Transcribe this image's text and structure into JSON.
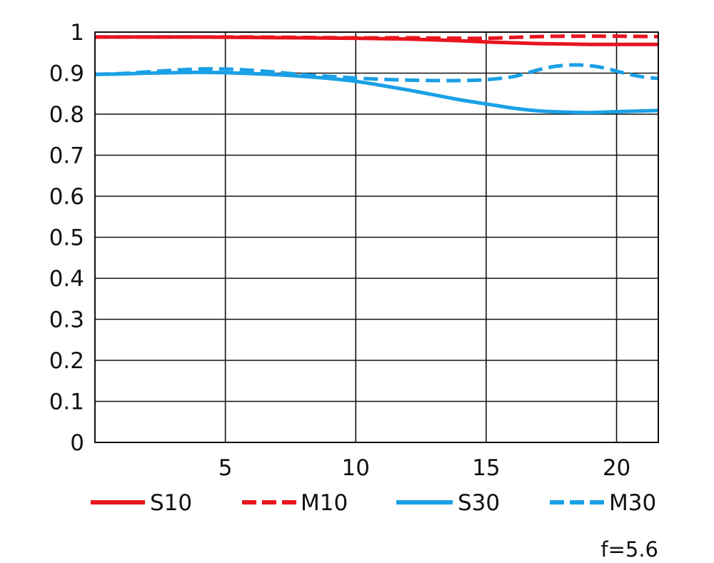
{
  "chart_data": {
    "type": "line",
    "title": "",
    "xlabel": "",
    "ylabel": "",
    "xlim": [
      0,
      21.6
    ],
    "ylim": [
      0,
      1
    ],
    "x_ticks": [
      5,
      10,
      15,
      20
    ],
    "y_ticks": [
      0,
      0.1,
      0.2,
      0.3,
      0.4,
      0.5,
      0.6,
      0.7,
      0.8,
      0.9,
      1
    ],
    "x_tick_labels": [
      "5",
      "10",
      "15",
      "20"
    ],
    "y_tick_labels": [
      "0",
      "0.1",
      "0.2",
      "0.3",
      "0.4",
      "0.5",
      "0.6",
      "0.7",
      "0.8",
      "0.9",
      "1"
    ],
    "grid": true,
    "legend_position": "bottom",
    "annotation": "f=5.6",
    "series": [
      {
        "name": "S10",
        "color": "#e8141e",
        "style": "solid",
        "x": [
          0,
          2,
          4,
          6,
          8,
          10,
          12,
          14,
          15,
          16,
          17,
          18,
          19,
          20,
          21.6
        ],
        "values": [
          0.988,
          0.988,
          0.988,
          0.987,
          0.986,
          0.985,
          0.983,
          0.979,
          0.976,
          0.974,
          0.972,
          0.971,
          0.97,
          0.97,
          0.97
        ]
      },
      {
        "name": "M10",
        "color": "#e8141e",
        "style": "dashed",
        "x": [
          0,
          2,
          4,
          6,
          8,
          10,
          12,
          14,
          15,
          16,
          17,
          18,
          19,
          20,
          21.6
        ],
        "values": [
          0.988,
          0.988,
          0.988,
          0.988,
          0.987,
          0.986,
          0.986,
          0.985,
          0.985,
          0.987,
          0.989,
          0.99,
          0.99,
          0.99,
          0.989
        ]
      },
      {
        "name": "S30",
        "color": "#1aa0e6",
        "style": "solid",
        "x": [
          0,
          1,
          2,
          3,
          4,
          5,
          6,
          7,
          8,
          9,
          10,
          11,
          12,
          13,
          14,
          15,
          16,
          17,
          18,
          19,
          20,
          21.6
        ],
        "values": [
          0.897,
          0.898,
          0.9,
          0.901,
          0.902,
          0.901,
          0.899,
          0.896,
          0.892,
          0.887,
          0.88,
          0.87,
          0.859,
          0.847,
          0.835,
          0.825,
          0.815,
          0.808,
          0.805,
          0.804,
          0.806,
          0.809
        ]
      },
      {
        "name": "M30",
        "color": "#1aa0e6",
        "style": "dashed",
        "x": [
          0,
          1,
          2,
          3,
          4,
          5,
          6,
          7,
          8,
          9,
          10,
          11,
          12,
          13,
          14,
          15,
          16,
          16.5,
          17,
          17.5,
          18,
          18.5,
          19,
          19.5,
          20,
          20.5,
          21,
          21.6
        ],
        "values": [
          0.897,
          0.899,
          0.903,
          0.907,
          0.91,
          0.91,
          0.907,
          0.902,
          0.896,
          0.892,
          0.888,
          0.885,
          0.883,
          0.882,
          0.882,
          0.884,
          0.891,
          0.899,
          0.908,
          0.915,
          0.919,
          0.92,
          0.918,
          0.913,
          0.905,
          0.897,
          0.891,
          0.887
        ]
      }
    ]
  }
}
